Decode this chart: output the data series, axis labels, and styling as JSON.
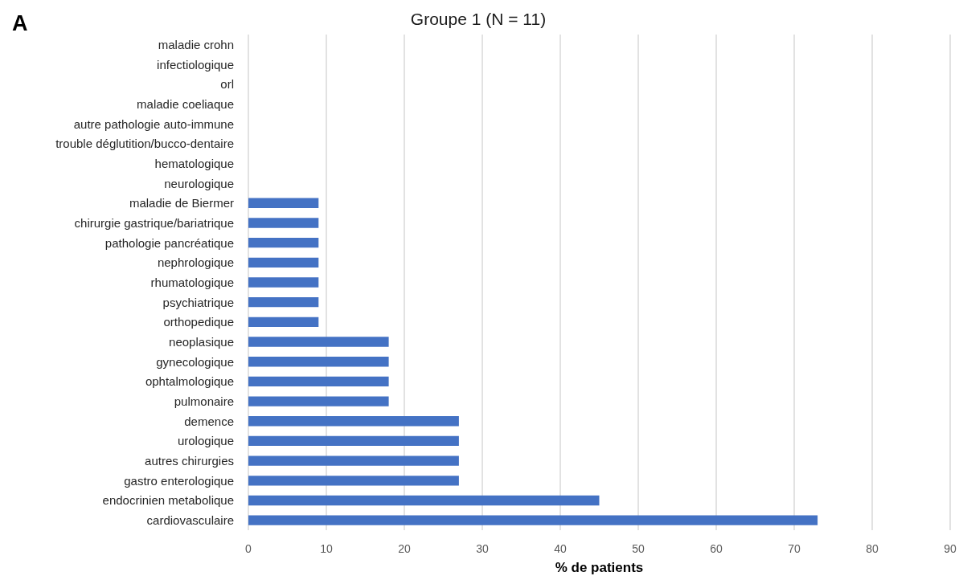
{
  "chart_data": {
    "type": "bar",
    "orientation": "horizontal",
    "title": "Groupe 1 (N = 11)",
    "xlabel": "% de patients",
    "annotations": [
      "A"
    ],
    "categories": [
      "maladie crohn",
      "infectiologique",
      "orl",
      "maladie coeliaque",
      "autre pathologie auto-immune",
      "trouble déglutition/bucco-dentaire",
      "hematologique",
      "neurologique",
      "maladie de Biermer",
      "chirurgie gastrique/bariatrique",
      "pathologie pancréatique",
      "nephrologique",
      "rhumatologique",
      "psychiatrique",
      "orthopedique",
      "neoplasique",
      "gynecologique",
      "ophtalmologique",
      "pulmonaire",
      "demence",
      "urologique",
      "autres chirurgies",
      "gastro enterologique",
      "endocrinien metabolique",
      "cardiovasculaire"
    ],
    "values": [
      0,
      0,
      0,
      0,
      0,
      0,
      0,
      0,
      9,
      9,
      9,
      9,
      9,
      9,
      9,
      18,
      18,
      18,
      18,
      27,
      27,
      27,
      27,
      45,
      73
    ],
    "color": "#4472c4",
    "xlim": [
      0,
      90
    ],
    "xticks": [
      0,
      10,
      20,
      30,
      40,
      50,
      60,
      70,
      80,
      90
    ],
    "grid": "x"
  }
}
